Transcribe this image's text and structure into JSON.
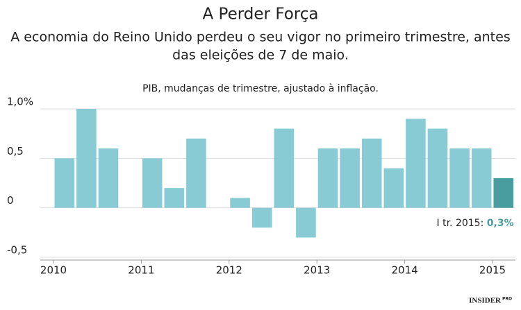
{
  "chart_data": {
    "type": "bar",
    "title": "A Perder Força",
    "subtitle": [
      "A economia do Reino Unido perdeu o seu vigor no primeiro trimestre, antes",
      "das eleições de 7 de maio."
    ],
    "caption": "PIB, mudanças de trimestre, ajustado à inflação.",
    "categories": [
      "2010",
      null,
      null,
      null,
      "2011",
      null,
      null,
      null,
      "2012",
      null,
      null,
      null,
      "2013",
      null,
      null,
      null,
      "2014",
      null,
      null,
      null,
      "2015"
    ],
    "values": [
      0.5,
      1.0,
      0.6,
      0,
      0.5,
      0.2,
      0.7,
      0,
      0.1,
      -0.2,
      0.8,
      -0.3,
      0.6,
      0.6,
      0.7,
      0.4,
      0.9,
      0.8,
      0.6,
      0.6,
      0.3
    ],
    "value_labels": [
      null,
      null,
      null,
      null,
      null,
      null,
      null,
      null,
      null,
      null,
      null,
      null,
      null,
      null,
      null,
      null,
      null,
      null,
      null,
      null,
      "0,3%"
    ],
    "colors": [
      "#88cbd4",
      "#88cbd4",
      "#88cbd4",
      "#88cbd4",
      "#88cbd4",
      "#88cbd4",
      "#88cbd4",
      "#88cbd4",
      "#88cbd4",
      "#88cbd4",
      "#88cbd4",
      "#88cbd4",
      "#88cbd4",
      "#88cbd4",
      "#88cbd4",
      "#88cbd4",
      "#88cbd4",
      "#88cbd4",
      "#88cbd4",
      "#88cbd4",
      "#4a9d9e"
    ],
    "annotation": "I tr. 2015:",
    "ylim": [
      -0.5,
      1.0
    ],
    "yticks": [
      {
        "value": -0.5,
        "label": "-0,5"
      },
      0,
      {
        "value": 0.5,
        "label": "0,5"
      },
      {
        "value": 1.0,
        "label": "1,0%"
      }
    ],
    "grid": true,
    "source": "INSIDER",
    "source_badge": "PRO"
  }
}
